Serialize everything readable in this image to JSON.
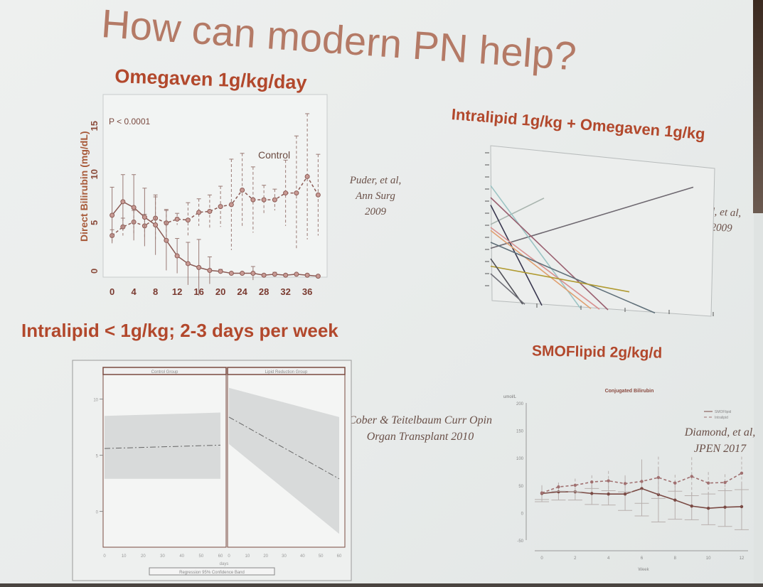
{
  "slide": {
    "title": "How can modern PN help?",
    "section1": "Omegaven 1g/kg/day",
    "section2": "Intralipid 1g/kg + Omegaven 1g/kg",
    "section3": "Intralipid < 1g/kg; 2-3 days per week",
    "section4": "SMOFlipid 2g/kg/d",
    "title_color": "#b47a66",
    "accent_color": "#b2482c"
  },
  "citations": {
    "c1": [
      "Puder, et al,",
      "Ann Surg",
      "2009"
    ],
    "c2": [
      "Diamond, et al,",
      "JPGN 2009"
    ],
    "c3": [
      "Cober & Teitelbaum Curr Opin",
      "Organ Transplant 2010"
    ],
    "c4": [
      "Diamond, et al,",
      "JPEN 2017"
    ]
  },
  "chart_data": [
    {
      "type": "line",
      "ylabel": "Direct Bilirubin (mg/dL)",
      "annotation": "P < 0.0001",
      "label": "Control",
      "xlim": [
        -1,
        39
      ],
      "ylim": [
        -1,
        17
      ],
      "xticks": [
        0,
        4,
        8,
        12,
        16,
        20,
        24,
        28,
        32,
        36
      ],
      "yticks": [
        0,
        5,
        10,
        15
      ],
      "x": [
        0,
        2,
        4,
        6,
        8,
        10,
        12,
        14,
        16,
        18,
        20,
        22,
        24,
        26,
        28,
        30,
        32,
        34,
        36,
        38
      ],
      "series": [
        {
          "style": "dashed",
          "values": [
            3.3,
            4.2,
            4.7,
            4.3,
            5.1,
            4.6,
            5.0,
            4.9,
            5.7,
            5.8,
            6.3,
            6.5,
            8.0,
            7.0,
            7.0,
            7.0,
            7.7,
            7.7,
            9.4,
            7.5
          ],
          "err": [
            0.6,
            0.9,
            1.2,
            1.2,
            2.2,
            1.4,
            0.6,
            1.8,
            1.4,
            1.7,
            2.1,
            4.7,
            3.8,
            3.4,
            1.5,
            1.1,
            3.4,
            5.9,
            6.5,
            4.2
          ]
        },
        {
          "style": "solid",
          "values": [
            5.4,
            6.8,
            6.2,
            5.2,
            4.4,
            2.8,
            1.2,
            0.4,
            0.0,
            -0.3,
            -0.4,
            -0.6,
            -0.6,
            -0.6,
            -0.8,
            -0.7,
            -0.8,
            -0.7,
            -0.8,
            -0.9
          ],
          "err": [
            2.9,
            2.8,
            3.4,
            3.0,
            3.1,
            3.1,
            1.8,
            2.2,
            2.9,
            1.4,
            0.2,
            0.1,
            0.1,
            0.7,
            0.1,
            0.2,
            0.1,
            0.1,
            0.1,
            0.1
          ]
        }
      ]
    },
    {
      "type": "line",
      "xlim": [
        0,
        100
      ],
      "ylim": [
        0,
        100
      ],
      "series": [
        {
          "color": "#6e6870",
          "x": [
            0,
            95
          ],
          "y": [
            36,
            86
          ]
        },
        {
          "color": "#a8b4ae",
          "x": [
            0,
            25
          ],
          "y": [
            52,
            72
          ]
        },
        {
          "color": "#9cc4c4",
          "x": [
            0,
            42
          ],
          "y": [
            78,
            0
          ]
        },
        {
          "color": "#9a6070",
          "x": [
            0,
            55
          ],
          "y": [
            70,
            0
          ]
        },
        {
          "color": "#3a3850",
          "x": [
            0,
            24
          ],
          "y": [
            65,
            0
          ]
        },
        {
          "color": "#e0a070",
          "x": [
            0,
            47
          ],
          "y": [
            48,
            0
          ]
        },
        {
          "color": "#d89090",
          "x": [
            0,
            51
          ],
          "y": [
            50,
            0
          ]
        },
        {
          "color": "#60707a",
          "x": [
            0,
            77
          ],
          "y": [
            40,
            0
          ]
        },
        {
          "color": "#b09a30",
          "x": [
            0,
            65
          ],
          "y": [
            24,
            13
          ]
        },
        {
          "color": "#505058",
          "x": [
            0,
            15
          ],
          "y": [
            29,
            0
          ]
        },
        {
          "color": "#707078",
          "x": [
            0,
            16
          ],
          "y": [
            19,
            0
          ]
        }
      ]
    },
    {
      "type": "area",
      "xlabel": "days",
      "ylim": [
        -3,
        12
      ],
      "xlim": [
        0,
        60
      ],
      "yticks": [
        0,
        5,
        10
      ],
      "xticks": [
        0,
        10,
        20,
        30,
        40,
        50,
        60
      ],
      "legend": "Regression  95% Confidence Band",
      "panels": [
        {
          "name": "Control Group",
          "regression": [
            5.6,
            5.9
          ],
          "band_upper": [
            8.5,
            8.8
          ],
          "band_lower": [
            2.9,
            2.9
          ]
        },
        {
          "name": "Lipid Reduction Group",
          "regression": [
            8.4,
            2.9
          ],
          "band_upper": [
            11.0,
            8.4
          ],
          "band_lower": [
            6.0,
            -2.0
          ]
        }
      ]
    },
    {
      "type": "line",
      "title": "Conjugated Bilirubin",
      "ylabel": "umol/L",
      "xlabel": "Week",
      "xlim": [
        -0.3,
        12.3
      ],
      "ylim": [
        -50,
        200
      ],
      "yticks": [
        -50,
        0,
        50,
        100,
        150,
        200
      ],
      "xticks": [
        0,
        2,
        4,
        6,
        8,
        10,
        12
      ],
      "legend_position": "top-right",
      "x": [
        0,
        1,
        2,
        3,
        4,
        5,
        6,
        7,
        8,
        9,
        10,
        11,
        12
      ],
      "series": [
        {
          "name": "SMOFlipid",
          "style": "solid",
          "values": [
            35,
            38,
            38,
            35,
            34,
            34,
            44,
            33,
            23,
            12,
            8,
            10,
            11
          ],
          "err": [
            15,
            15,
            15,
            20,
            20,
            30,
            50,
            50,
            35,
            25,
            30,
            35,
            42
          ]
        },
        {
          "name": "Intralipid",
          "style": "dashed",
          "values": [
            36,
            47,
            50,
            56,
            58,
            53,
            57,
            64,
            54,
            66,
            54,
            55,
            72
          ],
          "err": [
            12,
            8,
            12,
            12,
            18,
            15,
            40,
            38,
            15,
            35,
            20,
            15,
            30
          ]
        }
      ]
    }
  ]
}
